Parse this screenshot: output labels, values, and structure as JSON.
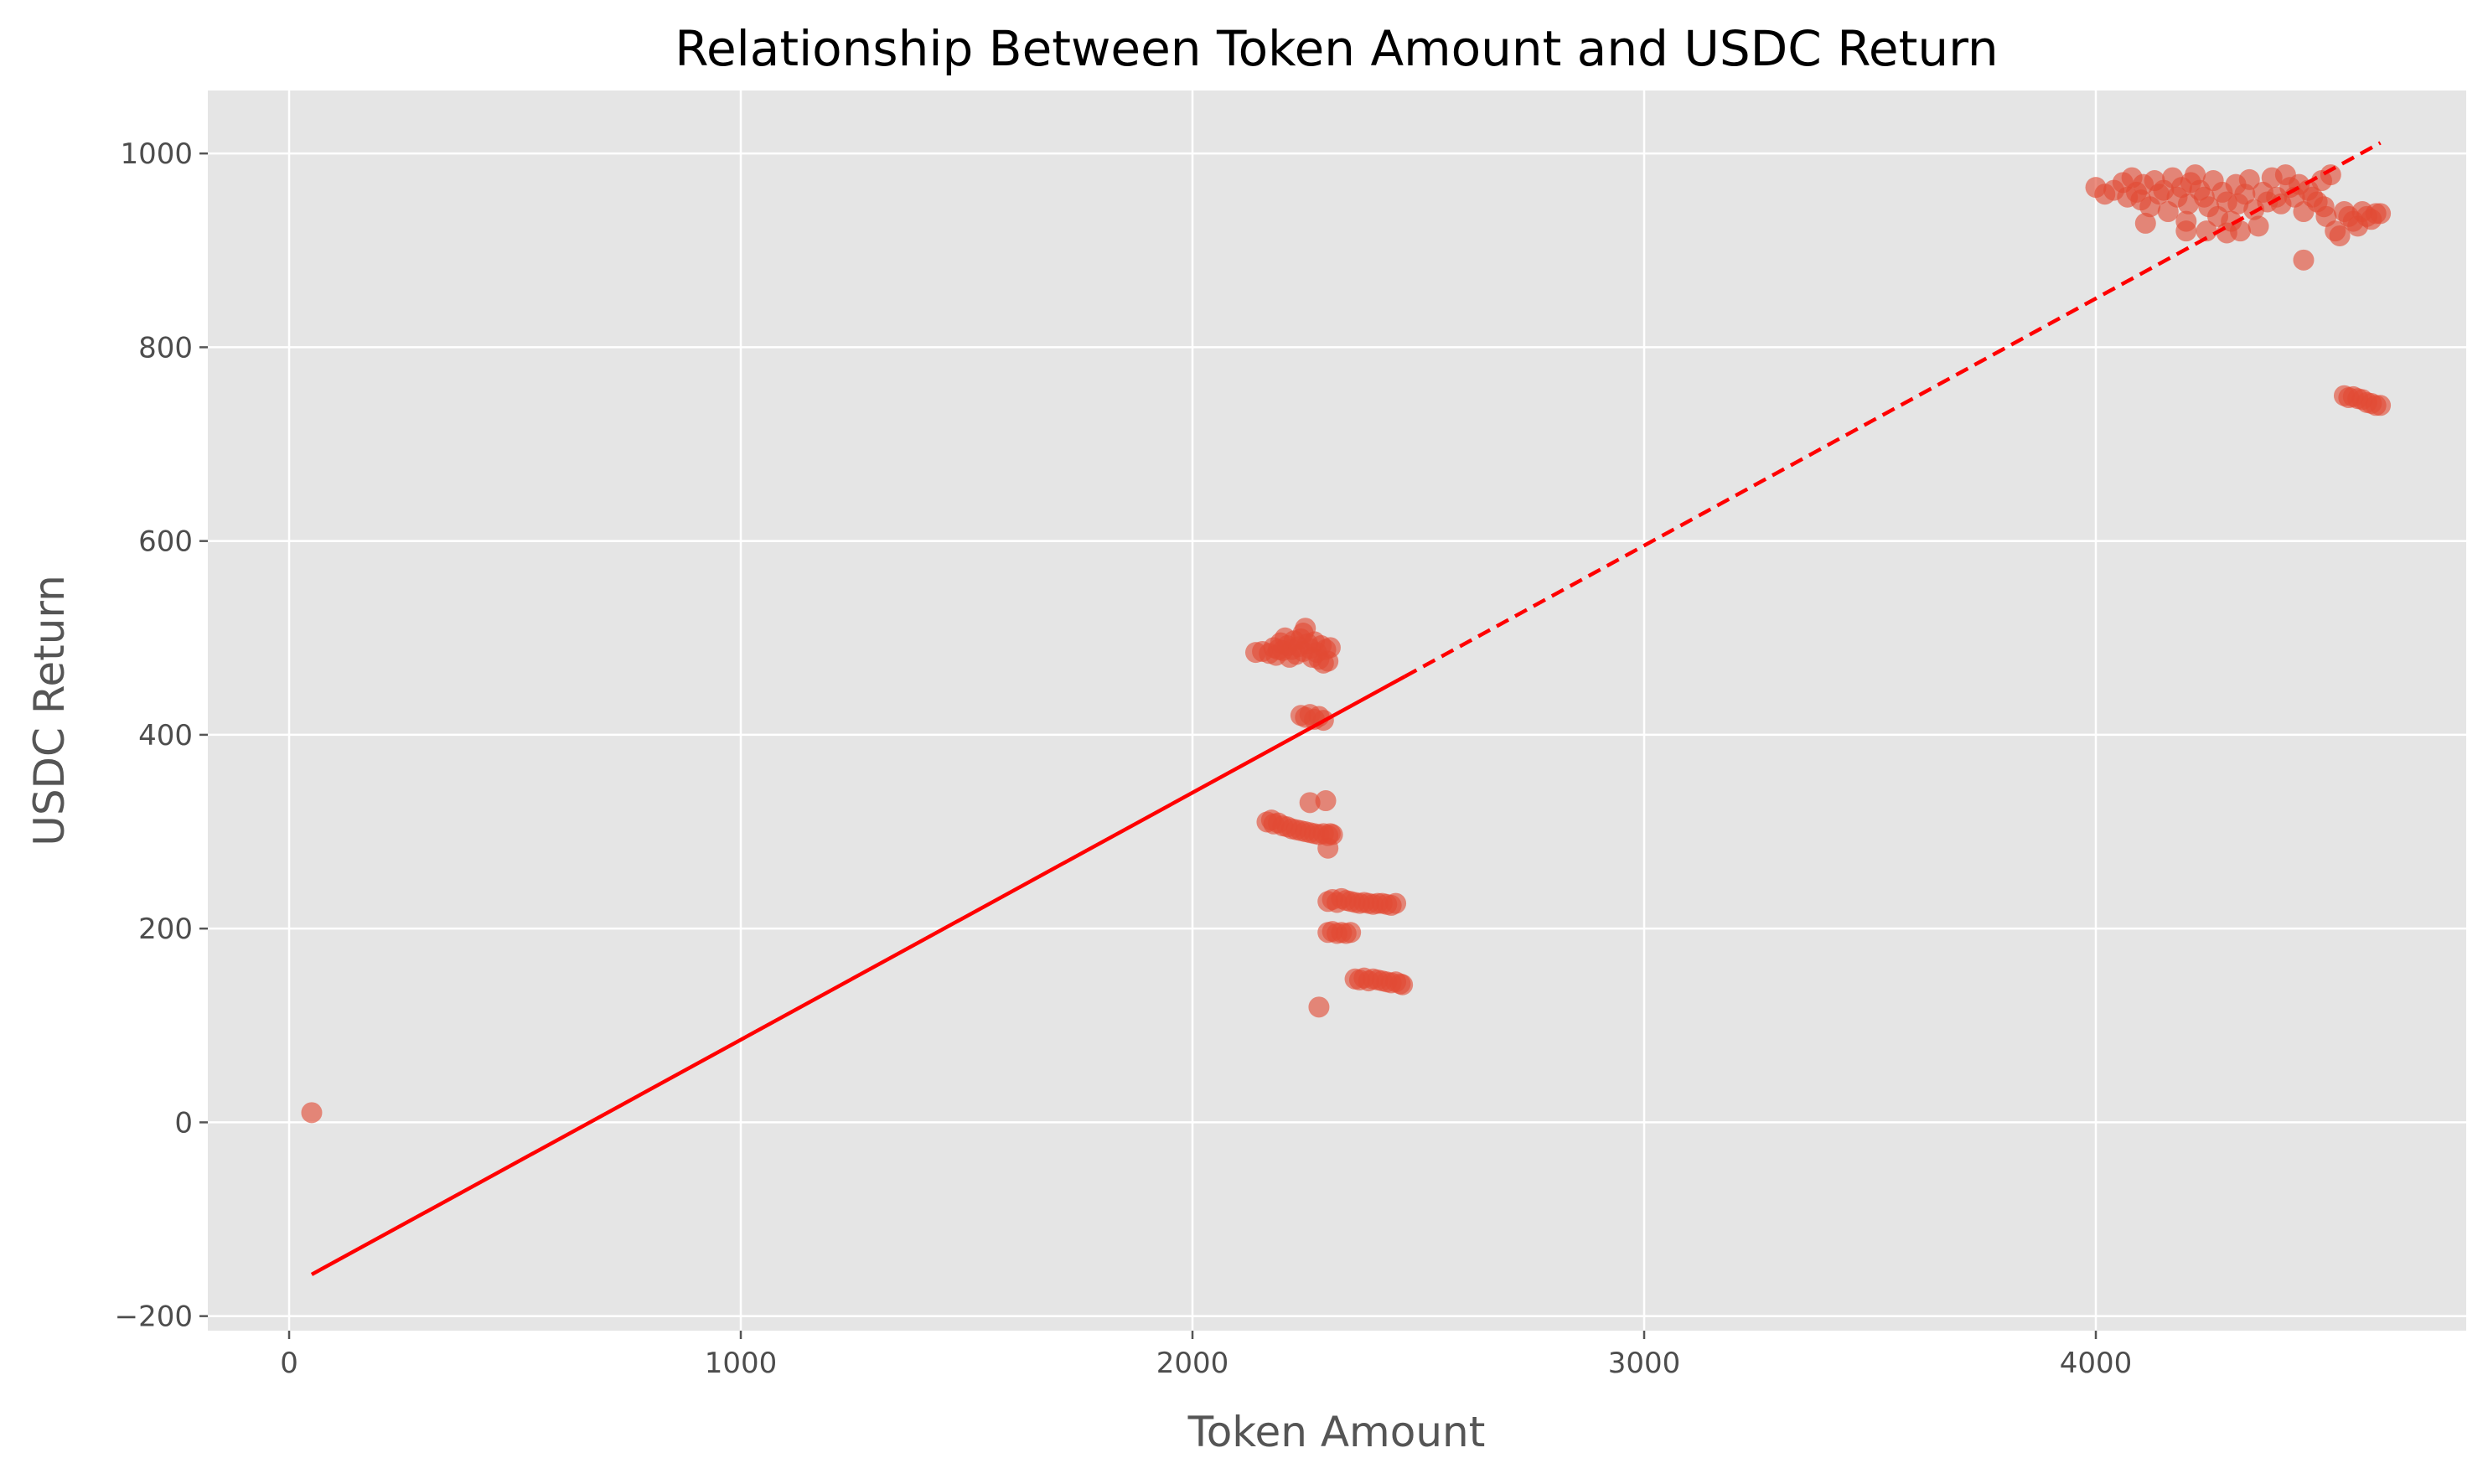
{
  "chart_data": {
    "type": "scatter",
    "title": "Relationship Between Token Amount and USDC Return",
    "xlabel": "Token Amount",
    "ylabel": "USDC Return",
    "xlim": [
      -180,
      4820
    ],
    "ylim": [
      -215,
      1065
    ],
    "x_ticks": [
      0,
      1000,
      2000,
      3000,
      4000
    ],
    "x_tick_labels": [
      "0",
      "1000",
      "2000",
      "3000",
      "4000"
    ],
    "y_ticks": [
      -200,
      0,
      200,
      400,
      600,
      800,
      1000
    ],
    "y_tick_labels": [
      "−200",
      "0",
      "200",
      "400",
      "600",
      "800",
      "1000"
    ],
    "grid": true,
    "background": "#e5e5e5",
    "point_color": "#e24a33",
    "line_color": "#ff0000",
    "points": [
      [
        50,
        10
      ],
      [
        2140,
        485
      ],
      [
        2155,
        486
      ],
      [
        2170,
        484
      ],
      [
        2180,
        490
      ],
      [
        2185,
        482
      ],
      [
        2195,
        495
      ],
      [
        2200,
        487
      ],
      [
        2205,
        500
      ],
      [
        2210,
        492
      ],
      [
        2220,
        488
      ],
      [
        2225,
        497
      ],
      [
        2230,
        483
      ],
      [
        2235,
        491
      ],
      [
        2240,
        499
      ],
      [
        2245,
        486
      ],
      [
        2250,
        510
      ],
      [
        2255,
        494
      ],
      [
        2260,
        489
      ],
      [
        2265,
        480
      ],
      [
        2270,
        496
      ],
      [
        2275,
        485
      ],
      [
        2280,
        478
      ],
      [
        2285,
        492
      ],
      [
        2290,
        474
      ],
      [
        2295,
        488
      ],
      [
        2300,
        476
      ],
      [
        2305,
        490
      ],
      [
        2245,
        505
      ],
      [
        2215,
        480
      ],
      [
        2190,
        488
      ],
      [
        2240,
        420
      ],
      [
        2250,
        418
      ],
      [
        2260,
        421
      ],
      [
        2270,
        416
      ],
      [
        2280,
        419
      ],
      [
        2290,
        415
      ],
      [
        2165,
        310
      ],
      [
        2175,
        312
      ],
      [
        2180,
        308
      ],
      [
        2190,
        309
      ],
      [
        2200,
        306
      ],
      [
        2210,
        305
      ],
      [
        2220,
        303
      ],
      [
        2230,
        302
      ],
      [
        2240,
        301
      ],
      [
        2250,
        300
      ],
      [
        2260,
        299
      ],
      [
        2270,
        298
      ],
      [
        2280,
        297
      ],
      [
        2290,
        298
      ],
      [
        2300,
        296
      ],
      [
        2305,
        298
      ],
      [
        2310,
        297
      ],
      [
        2260,
        330
      ],
      [
        2295,
        332
      ],
      [
        2300,
        283
      ],
      [
        2300,
        228
      ],
      [
        2310,
        230
      ],
      [
        2320,
        227
      ],
      [
        2330,
        231
      ],
      [
        2340,
        229
      ],
      [
        2350,
        228
      ],
      [
        2360,
        227
      ],
      [
        2370,
        226
      ],
      [
        2380,
        227
      ],
      [
        2390,
        226
      ],
      [
        2400,
        225
      ],
      [
        2410,
        226
      ],
      [
        2420,
        226
      ],
      [
        2430,
        225
      ],
      [
        2440,
        224
      ],
      [
        2450,
        226
      ],
      [
        2300,
        196
      ],
      [
        2310,
        197
      ],
      [
        2320,
        195
      ],
      [
        2330,
        196
      ],
      [
        2340,
        195
      ],
      [
        2350,
        196
      ],
      [
        2360,
        148
      ],
      [
        2370,
        147
      ],
      [
        2380,
        149
      ],
      [
        2390,
        146
      ],
      [
        2400,
        148
      ],
      [
        2410,
        147
      ],
      [
        2420,
        146
      ],
      [
        2430,
        145
      ],
      [
        2440,
        144
      ],
      [
        2450,
        145
      ],
      [
        2460,
        143
      ],
      [
        2465,
        142
      ],
      [
        2280,
        119
      ],
      [
        4000,
        965
      ],
      [
        4020,
        958
      ],
      [
        4040,
        962
      ],
      [
        4060,
        970
      ],
      [
        4070,
        955
      ],
      [
        4080,
        975
      ],
      [
        4090,
        960
      ],
      [
        4100,
        952
      ],
      [
        4105,
        968
      ],
      [
        4110,
        928
      ],
      [
        4120,
        945
      ],
      [
        4130,
        972
      ],
      [
        4140,
        958
      ],
      [
        4150,
        962
      ],
      [
        4160,
        940
      ],
      [
        4170,
        975
      ],
      [
        4180,
        955
      ],
      [
        4190,
        965
      ],
      [
        4200,
        930
      ],
      [
        4205,
        948
      ],
      [
        4210,
        970
      ],
      [
        4220,
        978
      ],
      [
        4230,
        962
      ],
      [
        4240,
        955
      ],
      [
        4245,
        920
      ],
      [
        4250,
        945
      ],
      [
        4260,
        972
      ],
      [
        4270,
        935
      ],
      [
        4280,
        960
      ],
      [
        4290,
        950
      ],
      [
        4300,
        930
      ],
      [
        4310,
        968
      ],
      [
        4315,
        948
      ],
      [
        4320,
        920
      ],
      [
        4330,
        958
      ],
      [
        4340,
        973
      ],
      [
        4350,
        942
      ],
      [
        4360,
        925
      ],
      [
        4370,
        960
      ],
      [
        4380,
        950
      ],
      [
        4390,
        975
      ],
      [
        4400,
        955
      ],
      [
        4410,
        948
      ],
      [
        4420,
        978
      ],
      [
        4430,
        965
      ],
      [
        4440,
        955
      ],
      [
        4450,
        968
      ],
      [
        4460,
        940
      ],
      [
        4470,
        962
      ],
      [
        4480,
        955
      ],
      [
        4490,
        950
      ],
      [
        4500,
        972
      ],
      [
        4505,
        945
      ],
      [
        4510,
        935
      ],
      [
        4520,
        978
      ],
      [
        4530,
        920
      ],
      [
        4540,
        915
      ],
      [
        4550,
        940
      ],
      [
        4560,
        935
      ],
      [
        4570,
        930
      ],
      [
        4580,
        925
      ],
      [
        4590,
        940
      ],
      [
        4600,
        935
      ],
      [
        4610,
        932
      ],
      [
        4620,
        938
      ],
      [
        4630,
        938
      ],
      [
        4200,
        920
      ],
      [
        4290,
        918
      ],
      [
        4460,
        890
      ],
      [
        4550,
        750
      ],
      [
        4560,
        748
      ],
      [
        4570,
        749
      ],
      [
        4580,
        747
      ],
      [
        4590,
        746
      ],
      [
        4600,
        743
      ],
      [
        4610,
        742
      ],
      [
        4620,
        740
      ],
      [
        4630,
        740
      ]
    ],
    "regression": {
      "x0": 50,
      "y0": -157,
      "x_split": 2470,
      "x1": 4630,
      "y1": 1011
    }
  }
}
